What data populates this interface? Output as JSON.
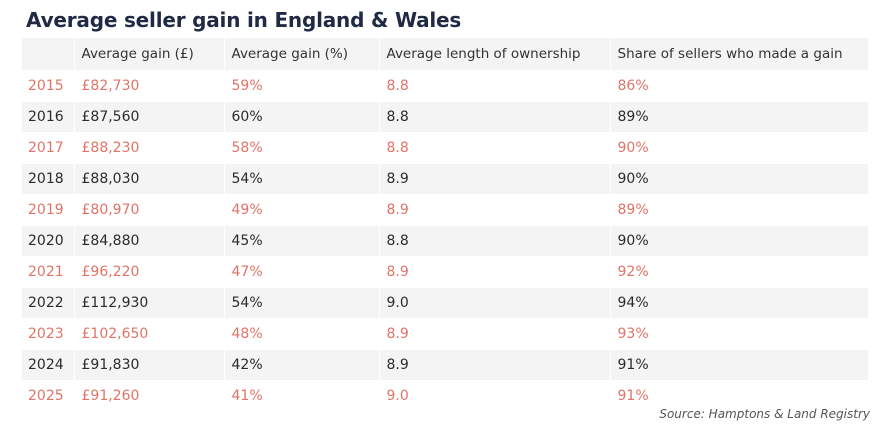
{
  "title": "Average seller gain in England & Wales",
  "table": {
    "headers": [
      "",
      "Average gain (£)",
      "Average gain (%)",
      "Average length of ownership",
      "Share of sellers who made a gain"
    ],
    "rows": [
      [
        "2015",
        "£82,730",
        "59%",
        "8.8",
        "86%"
      ],
      [
        "2016",
        "£87,560",
        "60%",
        "8.8",
        "89%"
      ],
      [
        "2017",
        "£88,230",
        "58%",
        "8.8",
        "90%"
      ],
      [
        "2018",
        "£88,030",
        "54%",
        "8.9",
        "90%"
      ],
      [
        "2019",
        "£80,970",
        "49%",
        "8.9",
        "89%"
      ],
      [
        "2020",
        "£84,880",
        "45%",
        "8.8",
        "90%"
      ],
      [
        "2021",
        "£96,220",
        "47%",
        "8.9",
        "92%"
      ],
      [
        "2022",
        "£112,930",
        "54%",
        "9.0",
        "94%"
      ],
      [
        "2023",
        "£102,650",
        "48%",
        "8.9",
        "93%"
      ],
      [
        "2024",
        "£91,830",
        "42%",
        "8.9",
        "91%"
      ],
      [
        "2025",
        "£91,260",
        "41%",
        "9.0",
        "91%"
      ]
    ]
  },
  "source": "Source: Hamptons & Land Registry",
  "colors": {
    "title": "#1f2a44",
    "highlight_row_text": "#e07467",
    "stripe_background": "#f4f4f4"
  }
}
